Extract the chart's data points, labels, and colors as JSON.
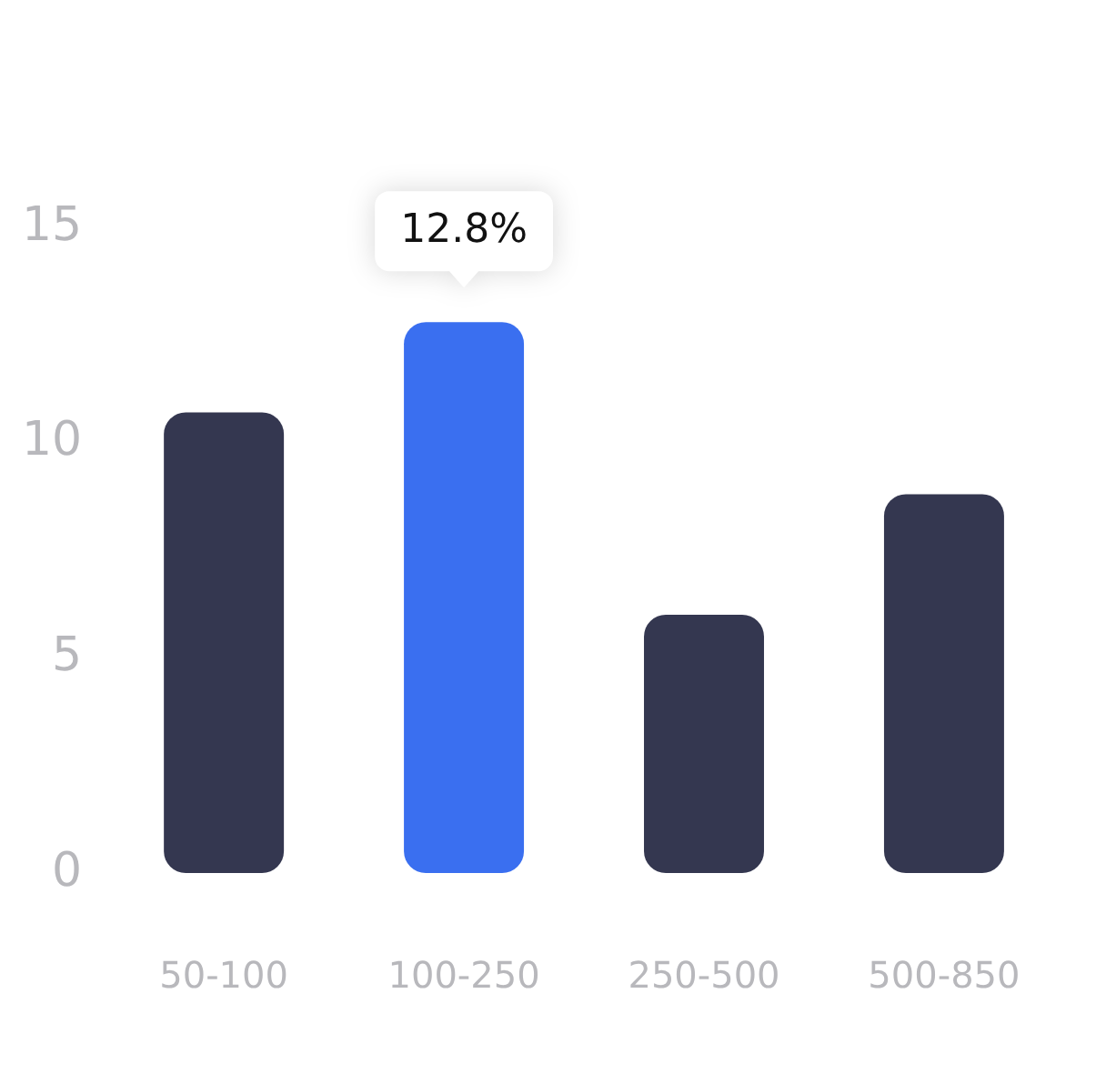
{
  "chart_data": {
    "type": "bar",
    "categories": [
      "50-100",
      "100-250",
      "250-500",
      "500-850"
    ],
    "values": [
      10.7,
      12.8,
      6.0,
      8.8
    ],
    "colors": [
      "#343750",
      "#3a6ff0",
      "#343750",
      "#343750"
    ],
    "ylim": [
      0,
      15
    ],
    "yticks": [
      0,
      5,
      10,
      15
    ],
    "grid": false,
    "legend": false,
    "annotations": [
      {
        "text": "12.8%",
        "x": "100-250",
        "y": 12.8
      }
    ]
  }
}
